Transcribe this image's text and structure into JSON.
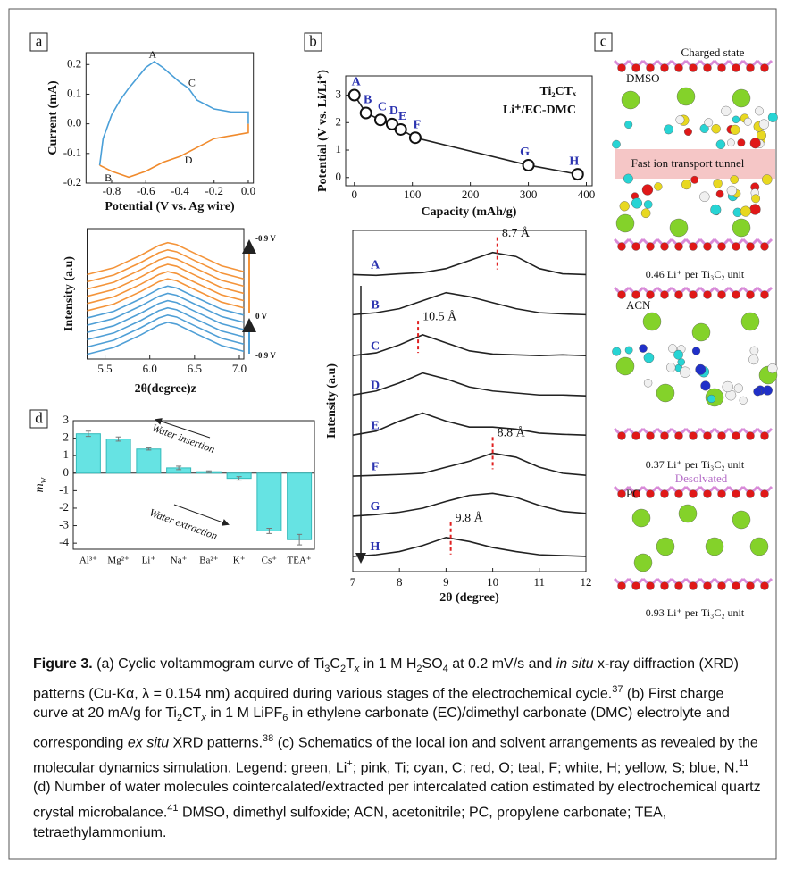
{
  "panel_labels": [
    "a",
    "b",
    "c",
    "d"
  ],
  "chart_data": [
    {
      "type": "line",
      "x_label": "Potential (V vs. Ag wire)",
      "y_label": "Current (mA)",
      "xlim": [
        -0.95,
        0.03
      ],
      "ylim": [
        -0.2,
        0.24
      ],
      "xticks": [
        -0.8,
        -0.6,
        -0.4,
        -0.2,
        {
          "value": 0,
          "label": "0.0"
        }
      ],
      "yticks": [
        -0.2,
        -0.1,
        {
          "value": 0,
          "label": "0.0"
        },
        0.1,
        0.2
      ],
      "series": [
        {
          "color": "#4a9fd8",
          "x": [
            -0.87,
            -0.85,
            -0.8,
            -0.75,
            -0.7,
            -0.6,
            -0.55,
            -0.5,
            -0.4,
            -0.35,
            -0.3,
            -0.2,
            -0.1,
            0,
            0
          ],
          "values": [
            -0.14,
            -0.05,
            0.03,
            0.08,
            0.12,
            0.19,
            0.21,
            0.19,
            0.14,
            0.12,
            0.08,
            0.05,
            0.04,
            0.04,
            0
          ]
        },
        {
          "color": "#f08a2c",
          "x": [
            0,
            0,
            -0.1,
            -0.2,
            -0.3,
            -0.4,
            -0.5,
            -0.6,
            -0.7,
            -0.8,
            -0.87
          ],
          "values": [
            0,
            -0.03,
            -0.04,
            -0.05,
            -0.08,
            -0.11,
            -0.13,
            -0.16,
            -0.18,
            -0.16,
            -0.14
          ]
        }
      ],
      "annotations": [
        {
          "text": "A",
          "x": -0.56,
          "y": 0.23
        },
        {
          "text": "B",
          "x": -0.82,
          "y": -0.185
        },
        {
          "text": "C",
          "x": -0.33,
          "y": 0.135
        },
        {
          "text": "D",
          "x": -0.35,
          "y": -0.125
        }
      ]
    },
    {
      "type": "line",
      "x_label": "2θ(degree)z",
      "y_label": "Intensity (a.u)",
      "xlim": [
        5.3,
        7.05
      ],
      "ylim": [
        0,
        13.5
      ],
      "xticks": [
        5.5,
        {
          "value": 6,
          "label": "6.0"
        },
        6.5,
        {
          "value": 7,
          "label": "7.0"
        }
      ],
      "side_labels": [
        "-0.9 V",
        "0 V",
        "-0.9 V"
      ],
      "series": [
        {
          "color": "#4f9fd6",
          "x": [
            5.3,
            5.6,
            5.9,
            6.1,
            6.2,
            6.3,
            6.5,
            6.8,
            7.05
          ],
          "values": [
            0.5,
            1.2,
            2.5,
            3.5,
            3.8,
            3.6,
            2.7,
            1.4,
            0.8
          ]
        },
        {
          "color": "#4f9fd6",
          "x": [
            5.3,
            5.6,
            5.9,
            6.1,
            6.2,
            6.3,
            6.5,
            6.8,
            7.05
          ],
          "values": [
            1.25,
            1.95,
            3.25,
            4.25,
            4.55,
            4.35,
            3.45,
            2.15,
            1.55
          ]
        },
        {
          "color": "#4f9fd6",
          "x": [
            5.3,
            5.6,
            5.9,
            6.1,
            6.2,
            6.3,
            6.5,
            6.8,
            7.05
          ],
          "values": [
            2.0,
            2.7,
            4.0,
            5.0,
            5.3,
            5.1,
            4.2,
            2.9,
            2.3
          ]
        },
        {
          "color": "#4f9fd6",
          "x": [
            5.3,
            5.6,
            5.9,
            6.1,
            6.2,
            6.3,
            6.5,
            6.8,
            7.05
          ],
          "values": [
            2.75,
            3.45,
            4.75,
            5.75,
            6.05,
            5.85,
            4.95,
            3.65,
            3.05
          ]
        },
        {
          "color": "#4f9fd6",
          "x": [
            5.3,
            5.6,
            5.9,
            6.1,
            6.2,
            6.3,
            6.5,
            6.8,
            7.05
          ],
          "values": [
            3.5,
            4.2,
            5.5,
            6.5,
            6.8,
            6.6,
            5.7,
            4.4,
            3.8
          ]
        },
        {
          "color": "#4f9fd6",
          "x": [
            5.3,
            5.6,
            5.9,
            6.1,
            6.2,
            6.3,
            6.5,
            6.8,
            7.05
          ],
          "values": [
            4.25,
            4.95,
            6.25,
            7.25,
            7.55,
            7.35,
            6.45,
            5.15,
            4.55
          ]
        },
        {
          "color": "#f4943a",
          "x": [
            5.3,
            5.6,
            5.9,
            6.1,
            6.2,
            6.3,
            6.5,
            6.8,
            7.05
          ],
          "values": [
            5.0,
            5.7,
            7.0,
            8.0,
            8.3,
            8.1,
            7.2,
            5.9,
            5.3
          ]
        },
        {
          "color": "#f4943a",
          "x": [
            5.3,
            5.6,
            5.9,
            6.1,
            6.2,
            6.3,
            6.5,
            6.8,
            7.05
          ],
          "values": [
            5.75,
            6.45,
            7.75,
            8.75,
            9.05,
            8.85,
            7.95,
            6.65,
            6.05
          ]
        },
        {
          "color": "#f4943a",
          "x": [
            5.3,
            5.6,
            5.9,
            6.1,
            6.2,
            6.3,
            6.5,
            6.8,
            7.05
          ],
          "values": [
            6.5,
            7.2,
            8.5,
            9.5,
            9.8,
            9.6,
            8.7,
            7.4,
            6.8
          ]
        },
        {
          "color": "#f4943a",
          "x": [
            5.3,
            5.6,
            5.9,
            6.1,
            6.2,
            6.3,
            6.5,
            6.8,
            7.05
          ],
          "values": [
            7.25,
            7.95,
            9.25,
            10.25,
            10.55,
            10.35,
            9.45,
            8.15,
            7.55
          ]
        },
        {
          "color": "#f4943a",
          "x": [
            5.3,
            5.6,
            5.9,
            6.1,
            6.2,
            6.3,
            6.5,
            6.8,
            7.05
          ],
          "values": [
            8.0,
            8.7,
            10.0,
            11.0,
            11.3,
            11.1,
            10.2,
            8.9,
            8.3
          ]
        },
        {
          "color": "#f4943a",
          "x": [
            5.3,
            5.6,
            5.9,
            6.1,
            6.2,
            6.3,
            6.5,
            6.8,
            7.05
          ],
          "values": [
            8.75,
            9.45,
            10.75,
            11.75,
            12.05,
            11.85,
            10.95,
            9.65,
            9.05
          ]
        }
      ]
    },
    {
      "type": "line",
      "title": "Ti₂CTₓ",
      "subtitle": "Li⁺/EC-DMC",
      "x_label": "Capacity (mAh/g)",
      "y_label": "Potential (V vs. Li/Li⁺)",
      "xlim": [
        -15,
        410
      ],
      "ylim": [
        -0.3,
        3.7
      ],
      "xticks": [
        0,
        100,
        200,
        300,
        400
      ],
      "yticks": [
        0,
        1,
        2,
        3
      ],
      "markers": true,
      "series": [
        {
          "color": "#222222",
          "x": [
            0,
            20,
            45,
            65,
            80,
            105,
            300,
            385
          ],
          "values": [
            3.0,
            2.35,
            2.1,
            1.95,
            1.75,
            1.45,
            0.45,
            0.12
          ],
          "point_labels": [
            "A",
            "B",
            "C",
            "D",
            "E",
            "F",
            "G",
            "H"
          ]
        }
      ]
    },
    {
      "type": "line",
      "x_label": "2θ (degree)",
      "y_label": "Intensity (a.u)",
      "xlim": [
        7,
        12
      ],
      "ylim": [
        0,
        8.5
      ],
      "xticks": [
        7,
        8,
        9,
        10,
        11,
        12
      ],
      "series": [
        {
          "name": "A",
          "color": "#222222",
          "x": [
            7,
            7.5,
            8,
            8.5,
            9,
            9.5,
            10,
            10.5,
            11,
            11.5,
            12
          ],
          "values": [
            7.4,
            7.38,
            7.42,
            7.45,
            7.55,
            7.75,
            7.95,
            7.85,
            7.55,
            7.42,
            7.4
          ],
          "peak": 10.1,
          "peak_label": "8.7 Å"
        },
        {
          "name": "B",
          "color": "#222222",
          "x": [
            7,
            7.5,
            8,
            8.5,
            9,
            9.5,
            10,
            10.5,
            11,
            11.5,
            12
          ],
          "values": [
            6.4,
            6.45,
            6.55,
            6.75,
            6.95,
            6.85,
            6.7,
            6.55,
            6.45,
            6.42,
            6.4
          ]
        },
        {
          "name": "C",
          "color": "#222222",
          "x": [
            7,
            7.5,
            8,
            8.5,
            9,
            9.5,
            10,
            10.5,
            11,
            11.5,
            12
          ],
          "values": [
            5.38,
            5.45,
            5.65,
            5.9,
            5.7,
            5.5,
            5.42,
            5.4,
            5.38,
            5.4,
            5.38
          ],
          "peak": 8.4,
          "peak_label": "10.5 Å"
        },
        {
          "name": "D",
          "color": "#222222",
          "x": [
            7,
            7.5,
            8,
            8.5,
            9,
            9.5,
            10,
            10.5,
            11,
            11.5,
            12
          ],
          "values": [
            4.4,
            4.5,
            4.7,
            4.95,
            4.8,
            4.6,
            4.5,
            4.45,
            4.4,
            4.4,
            4.38
          ]
        },
        {
          "name": "E",
          "color": "#222222",
          "x": [
            7,
            7.5,
            8,
            8.5,
            9,
            9.5,
            10,
            10.5,
            11,
            11.5,
            12
          ],
          "values": [
            3.4,
            3.5,
            3.75,
            3.95,
            3.75,
            3.6,
            3.6,
            3.55,
            3.45,
            3.42,
            3.4
          ]
        },
        {
          "name": "F",
          "color": "#222222",
          "x": [
            7,
            7.5,
            8,
            8.5,
            9,
            9.5,
            10,
            10.5,
            11,
            11.5,
            12
          ],
          "values": [
            2.38,
            2.4,
            2.42,
            2.45,
            2.6,
            2.75,
            2.95,
            2.85,
            2.6,
            2.45,
            2.4
          ],
          "peak": 10.0,
          "peak_label": "8.8 Å"
        },
        {
          "name": "G",
          "color": "#222222",
          "x": [
            7,
            7.5,
            8,
            8.5,
            9,
            9.5,
            10,
            10.5,
            11,
            11.5,
            12
          ],
          "values": [
            1.38,
            1.42,
            1.48,
            1.58,
            1.75,
            1.9,
            1.95,
            1.85,
            1.65,
            1.5,
            1.45
          ]
        },
        {
          "name": "H",
          "color": "#222222",
          "x": [
            7,
            7.5,
            8,
            8.5,
            9,
            9.5,
            10,
            10.5,
            11,
            11.5,
            12
          ],
          "values": [
            0.38,
            0.42,
            0.5,
            0.65,
            0.85,
            0.75,
            0.6,
            0.5,
            0.42,
            0.4,
            0.38
          ],
          "peak": 9.1,
          "peak_label": "9.8 Å"
        }
      ]
    },
    {
      "type": "bar",
      "y_label": "m",
      "y_label_sub": "w",
      "color": "#66e3e3",
      "categories": [
        "Al³⁺",
        "Mg²⁺",
        "Li⁺",
        "Na⁺",
        "Ba²⁺",
        "K⁺",
        "Cs⁺",
        "TEA⁺"
      ],
      "values": [
        2.25,
        1.95,
        1.38,
        0.3,
        0.08,
        -0.3,
        -3.3,
        -3.8
      ],
      "errors": [
        0.15,
        0.12,
        0.06,
        0.1,
        0.05,
        0.1,
        0.15,
        0.3
      ],
      "ylim": [
        -4.35,
        3
      ],
      "yticks": [
        -4,
        -3,
        -2,
        -1,
        0,
        1,
        2,
        3
      ],
      "annotations": [
        "Water insertion",
        "Water extraction"
      ]
    }
  ],
  "panel_c": {
    "header": "Charged state",
    "tunnel": "Fast ion transport tunnel",
    "frames": [
      {
        "solvent": "DMSO",
        "caption": "0.46 Li⁺ per Ti₃C₂ unit"
      },
      {
        "solvent": "ACN",
        "caption": "0.37 Li⁺ per Ti₃C₂ unit"
      },
      {
        "solvent": "PC",
        "note": "Desolvated",
        "caption": "0.93 Li⁺ per Ti₃C₂ unit"
      }
    ]
  },
  "caption": [
    {
      "text": "Figure 3.",
      "style": "b"
    },
    {
      "text": " (a) Cyclic voltammogram curve of Ti"
    },
    {
      "text": "3",
      "style": "sub"
    },
    {
      "text": "C"
    },
    {
      "text": "2",
      "style": "sub"
    },
    {
      "text": "T"
    },
    {
      "text": "x",
      "style": "subi"
    },
    {
      "text": " in 1 M H"
    },
    {
      "text": "2",
      "style": "sub"
    },
    {
      "text": "SO"
    },
    {
      "text": "4",
      "style": "sub"
    },
    {
      "text": " at 0.2 mV/s and "
    },
    {
      "text": "in situ",
      "style": "i"
    },
    {
      "text": " x-ray diffraction (XRD) patterns (Cu-Kα, λ = 0.154 nm) acquired during various stages of the electrochemical cycle."
    },
    {
      "text": "37",
      "style": "sup"
    },
    {
      "text": " (b) First charge curve at 20 mA/g for Ti"
    },
    {
      "text": "2",
      "style": "sub"
    },
    {
      "text": "CT"
    },
    {
      "text": "x",
      "style": "subi"
    },
    {
      "text": " in 1 M LiPF"
    },
    {
      "text": "6",
      "style": "sub"
    },
    {
      "text": " in ethylene carbonate (EC)/dimethyl carbonate (DMC) electrolyte and corresponding "
    },
    {
      "text": "ex situ",
      "style": "i"
    },
    {
      "text": " XRD patterns."
    },
    {
      "text": "38",
      "style": "sup"
    },
    {
      "text": " (c) Schematics of the local ion and solvent arrangements as revealed by the molecular dynamics simulation. Legend: green, Li"
    },
    {
      "text": "+",
      "style": "sup"
    },
    {
      "text": "; pink, Ti; cyan, C; red, O; teal, F; white, H; yellow, S; blue, N."
    },
    {
      "text": "11",
      "style": "sup"
    },
    {
      "text": " (d) Number of water molecules cointercalated/extracted per intercalated cation estimated by electrochemical quartz crystal microbalance."
    },
    {
      "text": "41",
      "style": "sup"
    },
    {
      "text": " DMSO, dimethyl sulfoxide; ACN, acetonitrile; PC, propylene carbonate; TEA, tetraethylammonium."
    }
  ]
}
